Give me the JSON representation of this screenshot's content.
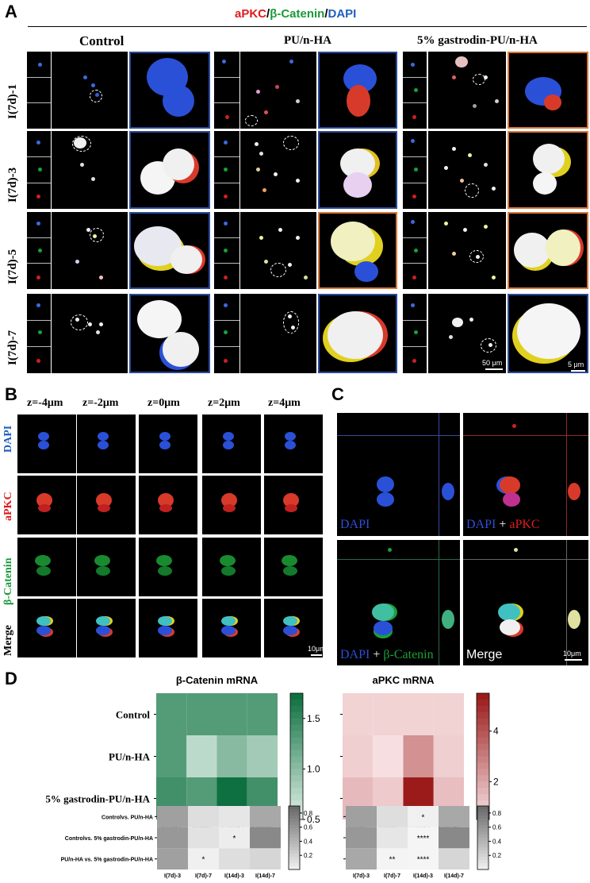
{
  "panels": {
    "A": "A",
    "B": "B",
    "C": "C",
    "D": "D"
  },
  "panelA": {
    "stain_title": {
      "apkc": "aPKC",
      "sep1": "/",
      "bcat": "β-Catenin",
      "sep2": "/",
      "dapi": "DAPI"
    },
    "columns": [
      "Control",
      "PU/n-HA",
      "5% gastrodin-PU/n-HA"
    ],
    "rows": [
      "I(7d)-1",
      "I(7d)-3",
      "I(7d)-5",
      "I(7d)-7"
    ],
    "scale_left": "50 μm",
    "scale_right": "5 μm"
  },
  "panelB": {
    "z_labels": [
      "z=-4μm",
      "z=-2μm",
      "z=0μm",
      "z=2μm",
      "z=4μm"
    ],
    "channels": [
      "DAPI",
      "aPKC",
      "β-Catenin",
      "Merge"
    ],
    "scale": "10μm"
  },
  "panelC": {
    "labels": {
      "dapi": "DAPI",
      "plus": " + ",
      "apkc": "aPKC",
      "bcat": "β-Catenin",
      "merge": "Merge"
    },
    "scale": "10μm"
  },
  "panelD": {
    "colors": {
      "green_low": "#e8f5ee",
      "green_high": "#0e7040",
      "red_low": "#fbe7e9",
      "red_high": "#9b1b1b"
    },
    "chart_data": [
      {
        "type": "heatmap",
        "title": "β-Catenin mRNA",
        "rows": [
          "Control",
          "PU/n-HA",
          "5% gastrodin-PU/n-HA"
        ],
        "columns": [
          "I(7d)-3",
          "I(7d)-7",
          "I(14d)-3",
          "I(14d)-7"
        ],
        "values": [
          [
            1.35,
            1.35,
            1.35,
            1.35
          ],
          [
            1.35,
            0.75,
            1.05,
            0.9
          ],
          [
            1.45,
            1.35,
            1.75,
            1.45
          ]
        ],
        "colorbar_ticks": [
          "1.5",
          "1.0",
          "0.5"
        ],
        "colorbar_range": [
          0.5,
          1.75
        ]
      },
      {
        "type": "heatmap",
        "title": "aPKC mRNA",
        "rows": [
          "Control",
          "PU/n-HA",
          "5% gastrodin-PU/n-HA"
        ],
        "columns": [
          "I(7d)-3",
          "I(7d)-7",
          "I(14d)-3",
          "I(14d)-7"
        ],
        "values": [
          [
            1.0,
            1.0,
            1.0,
            1.0
          ],
          [
            1.1,
            0.7,
            2.6,
            1.1
          ],
          [
            1.6,
            1.2,
            5.5,
            1.5
          ]
        ],
        "colorbar_ticks": [
          "4",
          "2"
        ],
        "colorbar_range": [
          0.5,
          5.5
        ]
      },
      {
        "type": "heatmap",
        "title": "",
        "rows": [
          "Controlvs. PU/n-HA",
          "Controlvs. 5% gastrodin-PU/n-HA",
          "PU/n-HA vs. 5% gastrodin-PU/n-HA"
        ],
        "columns": [
          "I(7d)-3",
          "I(7d)-7",
          "I(14d)-3",
          "I(14d)-7"
        ],
        "values": [
          [
            0.55,
            0.15,
            0.1,
            0.5
          ],
          [
            0.6,
            0.12,
            0.05,
            0.7
          ],
          [
            0.55,
            0.03,
            0.15,
            0.2
          ]
        ],
        "stars": [
          [
            "",
            "",
            "",
            ""
          ],
          [
            "",
            "",
            "*",
            ""
          ],
          [
            "",
            "*",
            "",
            ""
          ]
        ],
        "colorbar_ticks": [
          "0.8",
          "0.6",
          "0.4",
          "0.2"
        ],
        "colorbar_range": [
          0,
          0.9
        ]
      },
      {
        "type": "heatmap",
        "title": "",
        "rows": [
          "Controlvs. PU/n-HA",
          "Controlvs. 5% gastrodin-PU/n-HA",
          "PU/n-HA vs. 5% gastrodin-PU/n-HA"
        ],
        "columns": [
          "I(7d)-3",
          "I(7d)-7",
          "I(14d)-3",
          "I(14d)-7"
        ],
        "values": [
          [
            0.55,
            0.15,
            0.03,
            0.5
          ],
          [
            0.6,
            0.1,
            0.0001,
            0.7
          ],
          [
            0.5,
            0.005,
            0.0001,
            0.2
          ]
        ],
        "stars": [
          [
            "",
            "",
            "*",
            ""
          ],
          [
            "",
            "",
            "****",
            ""
          ],
          [
            "",
            "**",
            "****",
            ""
          ]
        ],
        "colorbar_ticks": [
          "0.8",
          "0.6",
          "0.4",
          "0.2"
        ],
        "colorbar_range": [
          0,
          0.9
        ]
      }
    ]
  }
}
